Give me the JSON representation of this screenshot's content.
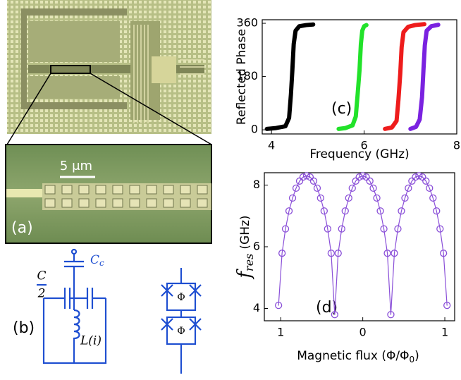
{
  "panel_a": {
    "label": "(a)",
    "scale_bar": "5 μm"
  },
  "panel_b": {
    "label": "(b)",
    "coupling_cap": {
      "symbol": "C",
      "subscript": "c"
    },
    "half_cap": {
      "numerator": "C",
      "denominator": "2"
    },
    "inductor": "L(i)",
    "flux": [
      "Φ",
      "Φ"
    ]
  },
  "chart_data": [
    {
      "type": "line",
      "marker": "dot",
      "annotation": "(c)",
      "ylabel": "Reflected Phase",
      "xlabel": "Frequency  (GHz)",
      "xlim": [
        3.8,
        8
      ],
      "xticks": [
        4,
        6,
        8
      ],
      "ylim": [
        -14,
        372
      ],
      "yticks": [
        0,
        180,
        360
      ],
      "series": [
        {
          "color": "#000000",
          "x": [
            3.9,
            4.1,
            4.3,
            4.38,
            4.42,
            4.45,
            4.48,
            4.52,
            4.6,
            4.75,
            4.9
          ],
          "values": [
            3,
            6,
            12,
            40,
            120,
            200,
            290,
            335,
            350,
            354,
            356
          ]
        },
        {
          "color": "#22e22a",
          "x": [
            5.45,
            5.6,
            5.75,
            5.82,
            5.86,
            5.9,
            5.93,
            5.96,
            6.0,
            6.05
          ],
          "values": [
            3,
            6,
            15,
            45,
            120,
            200,
            290,
            335,
            350,
            354
          ]
        },
        {
          "color": "#ee1c1c",
          "x": [
            6.45,
            6.6,
            6.7,
            6.74,
            6.78,
            6.81,
            6.85,
            6.95,
            7.1,
            7.3
          ],
          "values": [
            3,
            8,
            30,
            100,
            190,
            280,
            330,
            348,
            354,
            357
          ]
        },
        {
          "color": "#7a22e0",
          "x": [
            7.0,
            7.12,
            7.2,
            7.25,
            7.28,
            7.31,
            7.35,
            7.45,
            7.6
          ],
          "values": [
            3,
            10,
            35,
            110,
            200,
            285,
            335,
            350,
            355
          ]
        }
      ]
    },
    {
      "type": "line",
      "marker": "circle",
      "annotation": "(d)",
      "ylabel": {
        "symbol": "f",
        "subscript": "res",
        "unit": "(GHz)"
      },
      "xlabel": {
        "text": "Magnetic flux (Φ/Φ",
        "subscript": "0",
        "end": ")"
      },
      "xlim": [
        -1.2,
        1.12
      ],
      "xticks": [
        {
          "value": -1,
          "label": "1"
        },
        0,
        1
      ],
      "ylim": [
        3.6,
        8.4
      ],
      "yticks": [
        4,
        6,
        8
      ],
      "x": [
        -1.027,
        -0.984,
        -0.942,
        -0.899,
        -0.856,
        -0.813,
        -0.77,
        -0.728,
        -0.685,
        -0.642,
        -0.599,
        -0.556,
        -0.514,
        -0.471,
        -0.428,
        -0.385,
        -0.342,
        -0.3,
        -0.257,
        -0.214,
        -0.171,
        -0.128,
        -0.086,
        -0.043,
        0,
        0.043,
        0.086,
        0.128,
        0.171,
        0.214,
        0.257,
        0.3,
        0.342,
        0.385,
        0.428,
        0.471,
        0.514,
        0.556,
        0.599,
        0.642,
        0.685,
        0.728,
        0.77,
        0.813,
        0.856,
        0.899,
        0.942,
        0.984,
        1.027
      ],
      "series": [
        {
          "color": "#8a4fd8",
          "values": [
            4.1,
            5.79,
            6.58,
            7.16,
            7.58,
            7.9,
            8.13,
            8.26,
            8.3,
            8.26,
            8.13,
            7.9,
            7.58,
            7.16,
            6.58,
            5.79,
            3.8,
            5.79,
            6.58,
            7.16,
            7.58,
            7.9,
            8.13,
            8.26,
            8.3,
            8.26,
            8.13,
            7.9,
            7.58,
            7.16,
            6.58,
            5.79,
            3.8,
            5.79,
            6.58,
            7.16,
            7.58,
            7.9,
            8.13,
            8.26,
            8.3,
            8.26,
            8.13,
            7.9,
            7.58,
            7.16,
            6.58,
            5.79,
            4.1
          ]
        }
      ]
    }
  ]
}
